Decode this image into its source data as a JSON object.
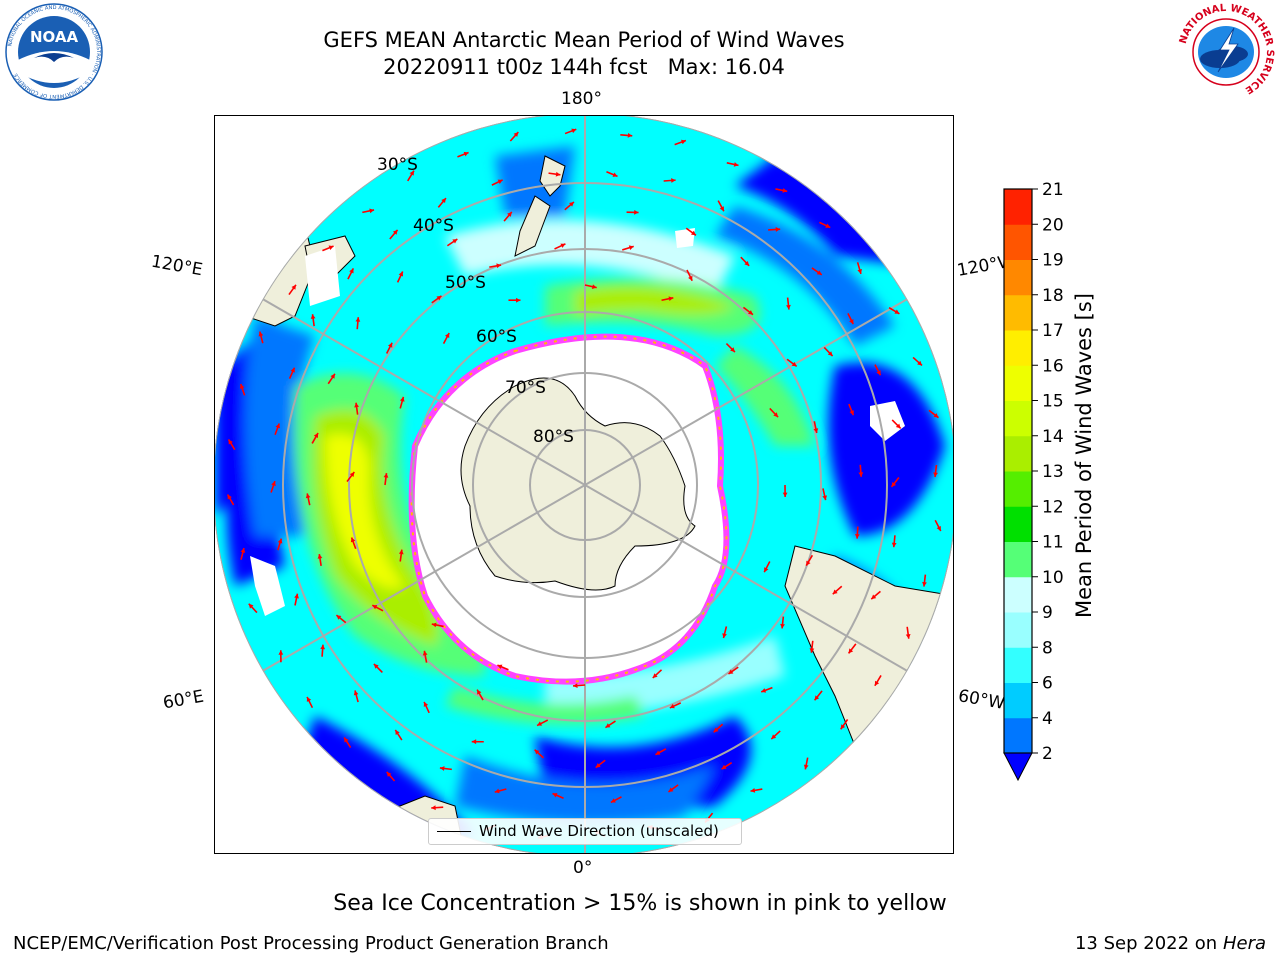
{
  "header": {
    "title_line1": "GEFS MEAN Antarctic Mean Period of Wind Waves",
    "title_line2": "20220911 t00z 144h fcst   Max: 16.04"
  },
  "logos": {
    "left": {
      "text": "NOAA",
      "ring_text": "NATIONAL OCEANIC AND ATMOSPHERIC ADMINISTRATION · U.S. DEPARTMENT OF COMMERCE",
      "color": "#1a5fb4"
    },
    "right": {
      "ring_text": "NATIONAL WEATHER SERVICE",
      "color": "#d6001c"
    }
  },
  "map": {
    "projection": "south-polar-stereographic",
    "longitude_labels": [
      "180°",
      "120°E",
      "120°W",
      "60°E",
      "60°W",
      "0°"
    ],
    "latitude_labels": [
      "30°S",
      "40°S",
      "50°S",
      "60°S",
      "70°S",
      "80°S"
    ],
    "ocean_color": "#00ffff",
    "land_color": "#efefdb",
    "ice_color": "#ffffff",
    "arrow_color": "#ff0000",
    "legend_label": "Wind Wave Direction (unscaled)"
  },
  "colorbar": {
    "label": "Mean Period of Wind Waves [s]",
    "ticks": [
      "2",
      "4",
      "6",
      "8",
      "9",
      "10",
      "11",
      "12",
      "13",
      "14",
      "15",
      "16",
      "17",
      "18",
      "19",
      "20",
      "21"
    ],
    "colors": [
      "#0077ff",
      "#00ccff",
      "#33ffff",
      "#99ffff",
      "#ccffff",
      "#55ff77",
      "#00e000",
      "#55ee00",
      "#aaee00",
      "#ccff00",
      "#eeff00",
      "#ffee00",
      "#ffbb00",
      "#ff8800",
      "#ff5500",
      "#ff2200"
    ],
    "under_color": "#0000ff"
  },
  "footer": {
    "caption": "Sea Ice Concentration > 15% is shown in pink to yellow",
    "left": "NCEP/EMC/Verification Post Processing Product Generation Branch",
    "right_date": "13 Sep 2022 on",
    "right_host": "Hera"
  }
}
